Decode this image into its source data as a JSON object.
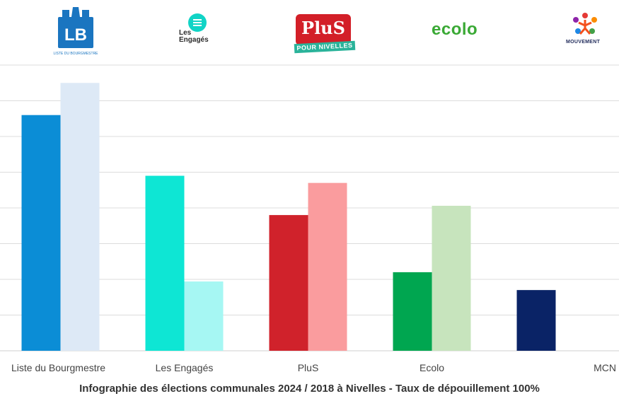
{
  "chart_data": {
    "type": "bar",
    "categories": [
      "Liste du Bourgmestre",
      "Les Engagés",
      "PluS",
      "Ecolo",
      "MCN"
    ],
    "series": [
      {
        "values": [
          33,
          24.5,
          19,
          11,
          8.5
        ],
        "colors": [
          "#0b8dd6",
          "#0ee6d4",
          "#d0222b",
          "#00a650",
          "#0a2366"
        ]
      },
      {
        "values": [
          37.5,
          9.7,
          23.5,
          20.3,
          null
        ],
        "colors": [
          "#dde9f6",
          "#a6f7f3",
          "#fa9c9e",
          "#c7e4bd",
          null
        ]
      }
    ],
    "ylim": [
      0,
      40
    ],
    "grid": true,
    "caption": "Infographie des élections communales 2024 / 2018 à Nivelles - Taux de dépouillement 100%"
  },
  "logos": {
    "lb": {
      "mark": "LB",
      "sub": "LISTE DU BOURGMESTRE"
    },
    "engages": {
      "line1": "Les",
      "line2": "Engagés"
    },
    "plus": {
      "mark": "PluS",
      "tag": "POUR NIVELLES"
    },
    "ecolo": {
      "mark": "ecolo"
    },
    "mcn": {
      "mark": "MOUVEMENT"
    }
  }
}
